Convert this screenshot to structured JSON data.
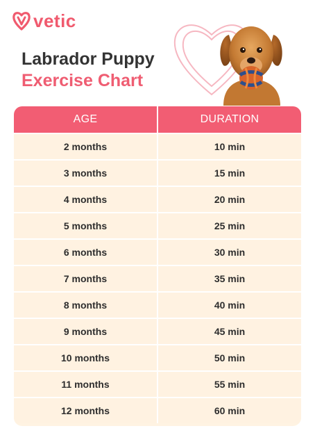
{
  "brand": {
    "name": "vetic",
    "color": "#f05a6e"
  },
  "title": {
    "line1": "Labrador Puppy",
    "line2": "Exercise Chart"
  },
  "table": {
    "headers": [
      "AGE",
      "DURATION"
    ],
    "header_color": "#f25d73",
    "row_color": "#fff2e1",
    "rows": [
      {
        "age": "2 months",
        "duration": "10 min"
      },
      {
        "age": "3 months",
        "duration": "15 min"
      },
      {
        "age": "4 months",
        "duration": "20 min"
      },
      {
        "age": "5 months",
        "duration": "25 min"
      },
      {
        "age": "6 months",
        "duration": "30 min"
      },
      {
        "age": "7 months",
        "duration": "35 min"
      },
      {
        "age": "8 months",
        "duration": "40 min"
      },
      {
        "age": "9 months",
        "duration": "45 min"
      },
      {
        "age": "10 months",
        "duration": "50 min"
      },
      {
        "age": "11 months",
        "duration": "55 min"
      },
      {
        "age": "12 months",
        "duration": "60 min"
      }
    ]
  },
  "icons": {
    "logo": "vetic-heart-logo-icon",
    "decoration": "heart-outline-icon",
    "photo": "labrador-puppy-with-ball"
  }
}
